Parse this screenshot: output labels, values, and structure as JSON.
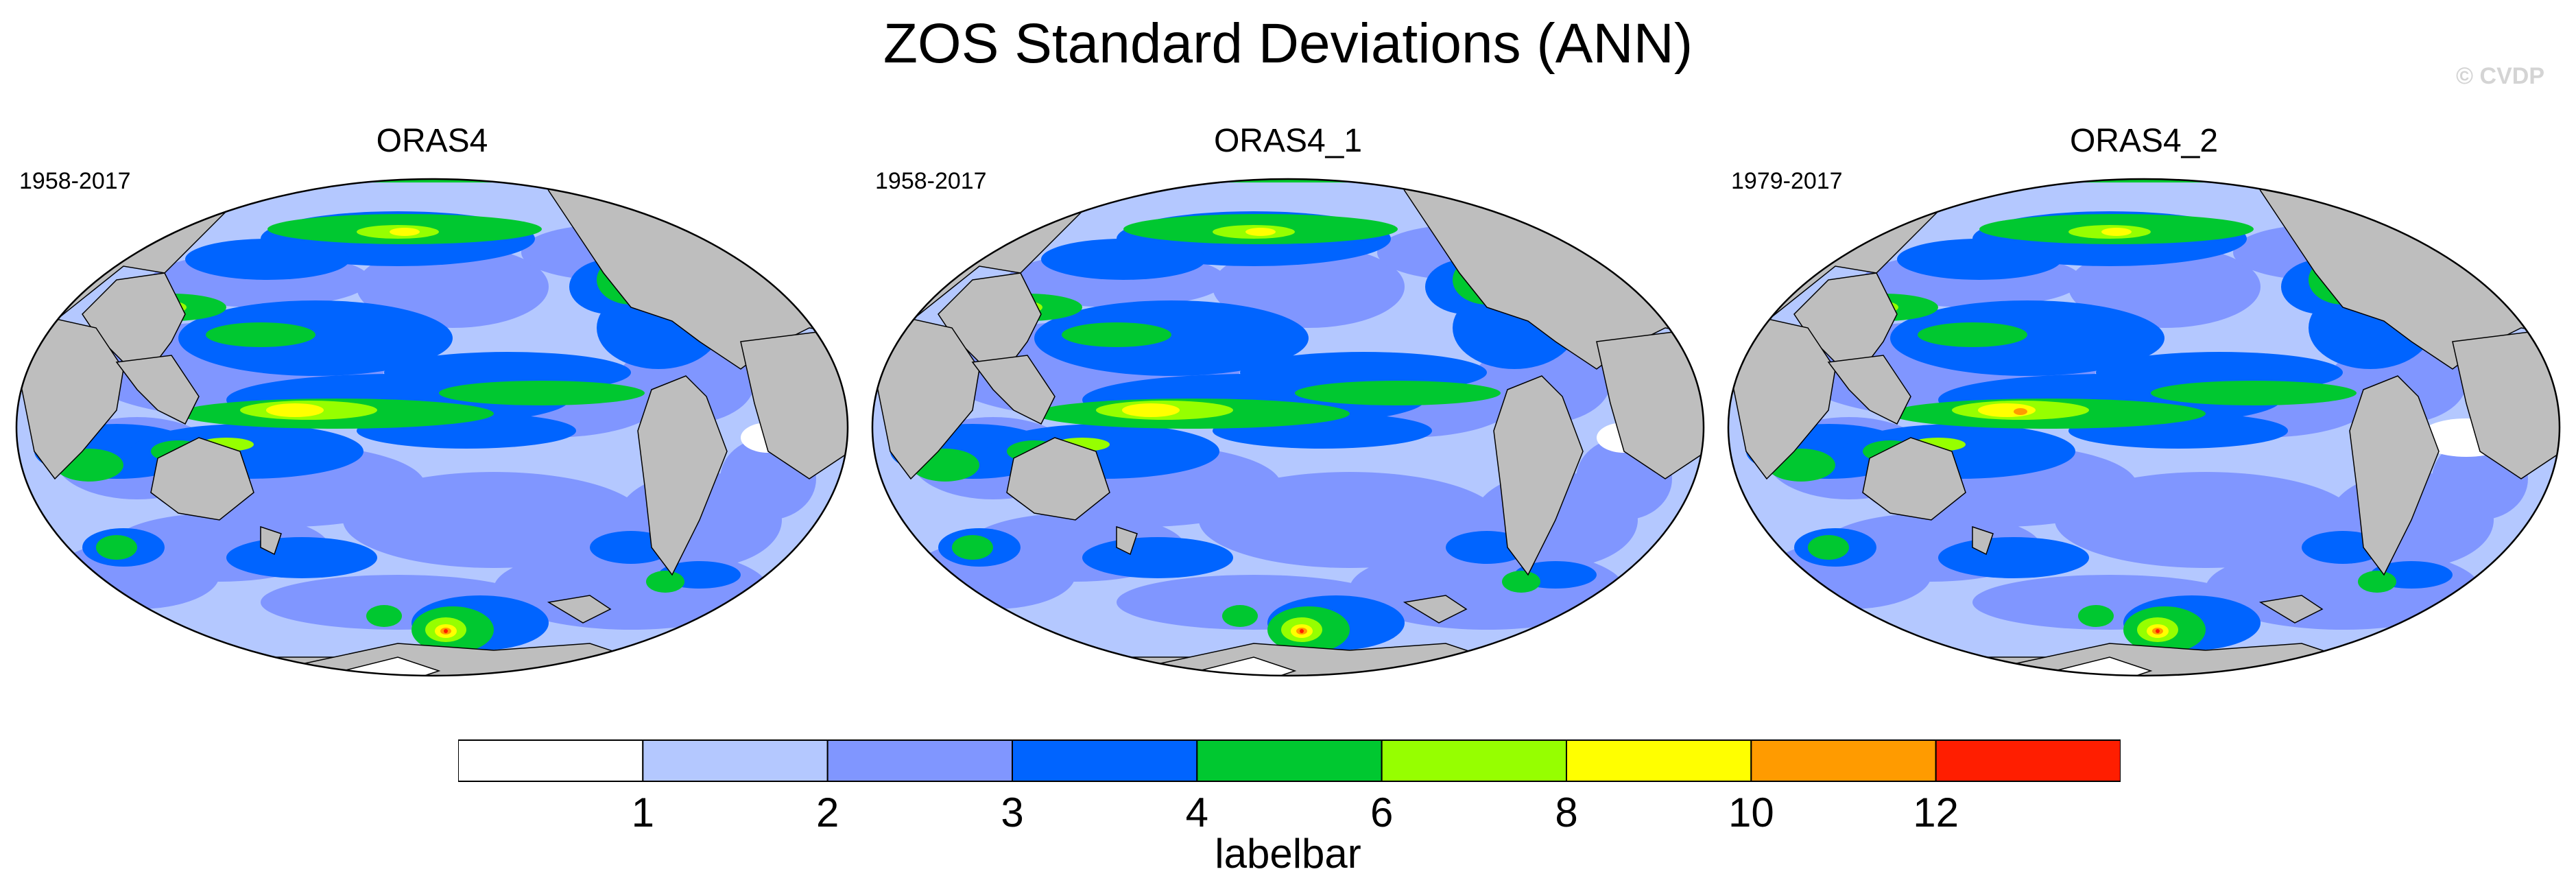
{
  "title": "ZOS Standard Deviations (ANN)",
  "copyright": "© CVDP",
  "panels": [
    {
      "title": "ORAS4",
      "period": "1958-2017"
    },
    {
      "title": "ORAS4_1",
      "period": "1958-2017"
    },
    {
      "title": "ORAS4_2",
      "period": "1979-2017"
    }
  ],
  "labelbar": {
    "title": "labelbar",
    "ticks": [
      "1",
      "2",
      "3",
      "4",
      "6",
      "8",
      "10",
      "12"
    ],
    "colors": [
      "#ffffff",
      "#b4c8ff",
      "#8096ff",
      "#0064ff",
      "#00c830",
      "#96ff00",
      "#ffff00",
      "#ff9b00",
      "#ff1e00"
    ]
  },
  "colors": {
    "land": "#bebebe",
    "ocean_low": "#b4c8ff",
    "ocean_mid": "#8096ff",
    "ocean_blue": "#0064ff",
    "green": "#00c830",
    "lime": "#96ff00",
    "yellow": "#ffff00",
    "orange": "#ff9b00",
    "red": "#ff1e00"
  }
}
